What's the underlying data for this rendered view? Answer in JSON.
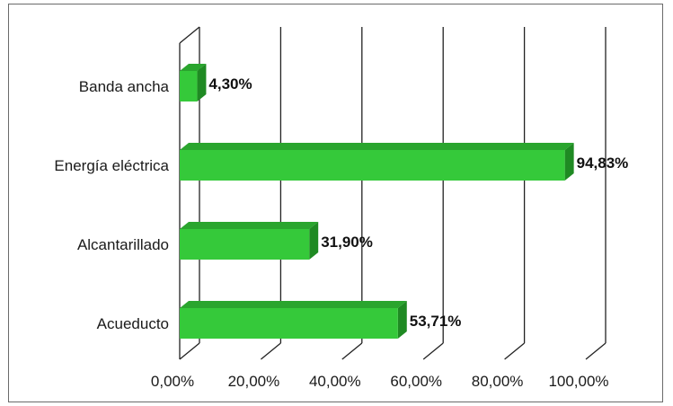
{
  "chart_data": {
    "type": "bar",
    "orientation": "horizontal",
    "three_d": true,
    "categories": [
      "Banda ancha",
      "Energía eléctrica",
      "Alcantarillado",
      "Acueducto"
    ],
    "values": [
      4.3,
      94.83,
      31.9,
      53.71
    ],
    "value_labels": [
      "4,30%",
      "94,83%",
      "31,90%",
      "53,71%"
    ],
    "xlim": [
      0,
      100
    ],
    "x_ticks": [
      0,
      20,
      40,
      60,
      80,
      100
    ],
    "x_tick_labels": [
      "0,00%",
      "20,00%",
      "40,00%",
      "60,00%",
      "80,00%",
      "100,00%"
    ],
    "grid": true,
    "legend": false,
    "bar_color": "#35c93a",
    "bar_top_color": "#2aa52e",
    "bar_side_color": "#1f8a23"
  }
}
